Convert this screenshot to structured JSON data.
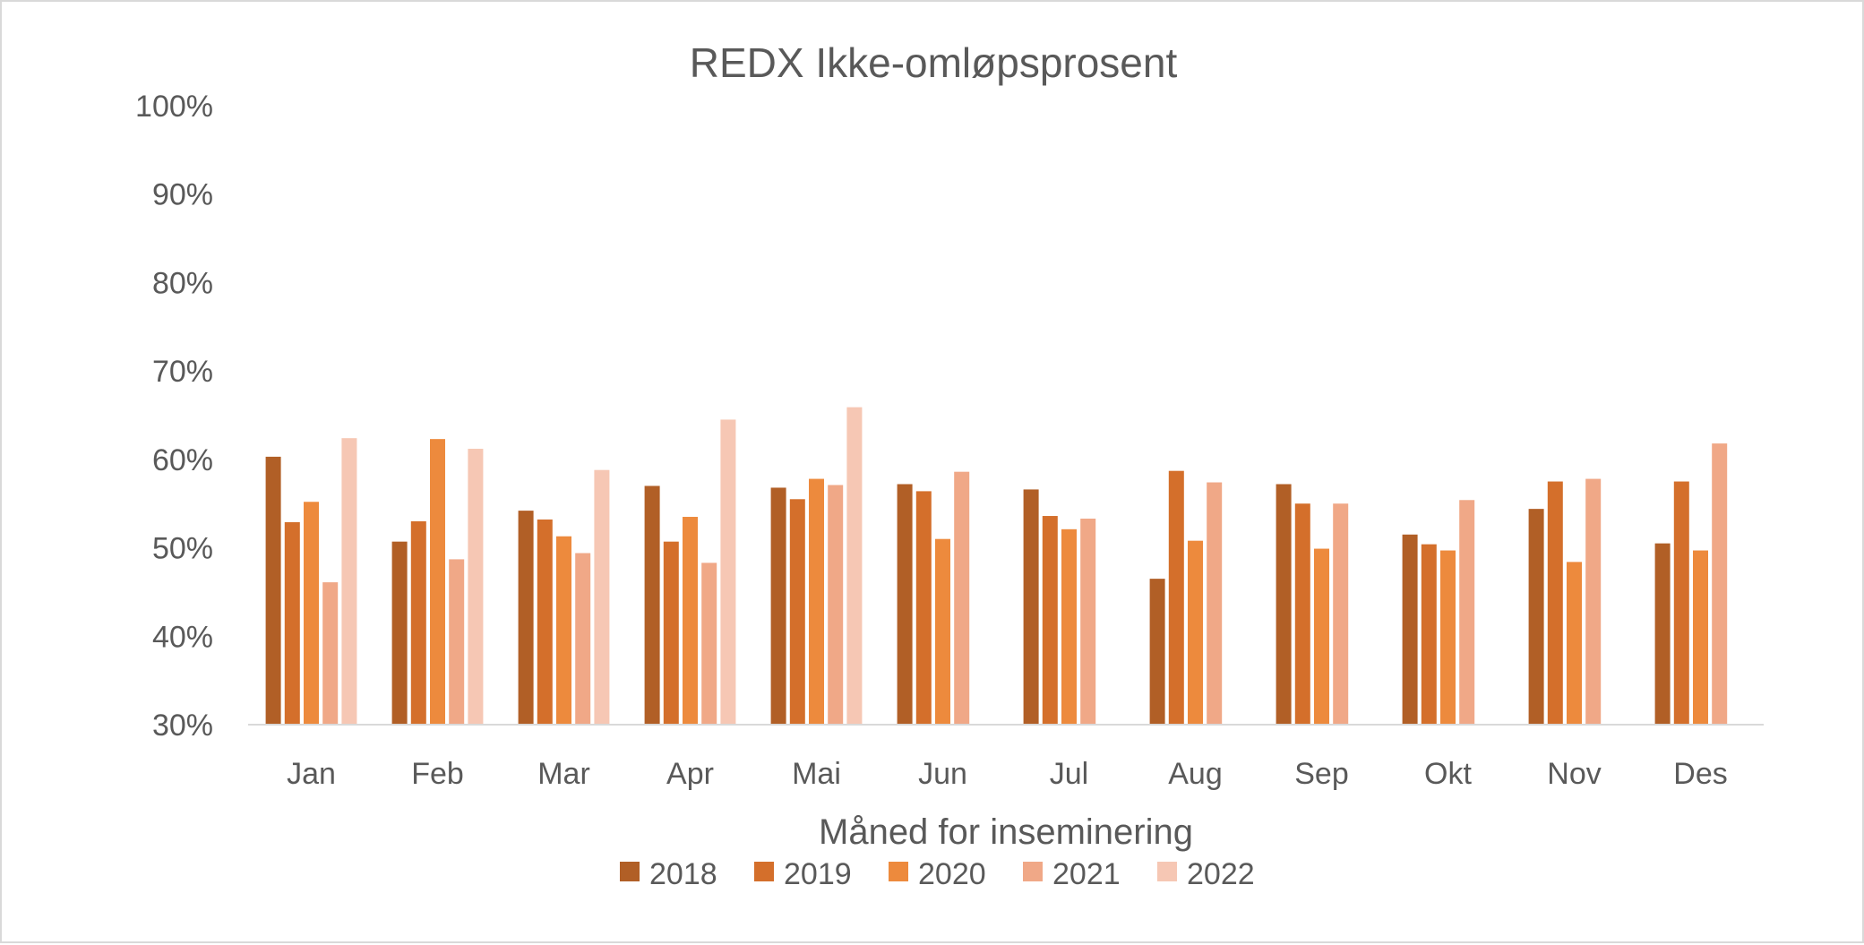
{
  "chart_data": {
    "type": "bar",
    "title": "REDX Ikke-omløpsprosent",
    "xlabel": "Måned for inseminering",
    "ylabel": "",
    "ylim": [
      30,
      100
    ],
    "yticks": [
      "30%",
      "40%",
      "50%",
      "60%",
      "70%",
      "80%",
      "90%",
      "100%"
    ],
    "grid": false,
    "legend_position": "bottom",
    "categories": [
      "Jan",
      "Feb",
      "Mar",
      "Apr",
      "Mai",
      "Jun",
      "Jul",
      "Aug",
      "Sep",
      "Okt",
      "Nov",
      "Des"
    ],
    "series": [
      {
        "name": "2018",
        "color": "#b15f26",
        "values": [
          60.3,
          50.7,
          54.2,
          57.0,
          56.8,
          57.2,
          56.6,
          46.5,
          57.2,
          51.5,
          54.4,
          50.5
        ]
      },
      {
        "name": "2019",
        "color": "#d46f2b",
        "values": [
          52.9,
          53.0,
          53.2,
          50.7,
          55.5,
          56.4,
          53.6,
          58.7,
          55.0,
          50.4,
          57.5,
          57.5
        ]
      },
      {
        "name": "2020",
        "color": "#ed8a3d",
        "values": [
          55.2,
          62.3,
          51.3,
          53.5,
          57.8,
          51.0,
          52.1,
          50.8,
          49.9,
          49.7,
          48.4,
          49.7
        ]
      },
      {
        "name": "2021",
        "color": "#f0a887",
        "values": [
          46.1,
          48.7,
          49.4,
          48.3,
          57.1,
          58.6,
          53.3,
          57.4,
          55.0,
          55.4,
          57.8,
          61.8
        ]
      },
      {
        "name": "2022",
        "color": "#f6c7b4",
        "values": [
          62.4,
          61.2,
          58.8,
          64.5,
          65.9,
          null,
          null,
          null,
          null,
          null,
          null,
          null
        ]
      }
    ]
  }
}
